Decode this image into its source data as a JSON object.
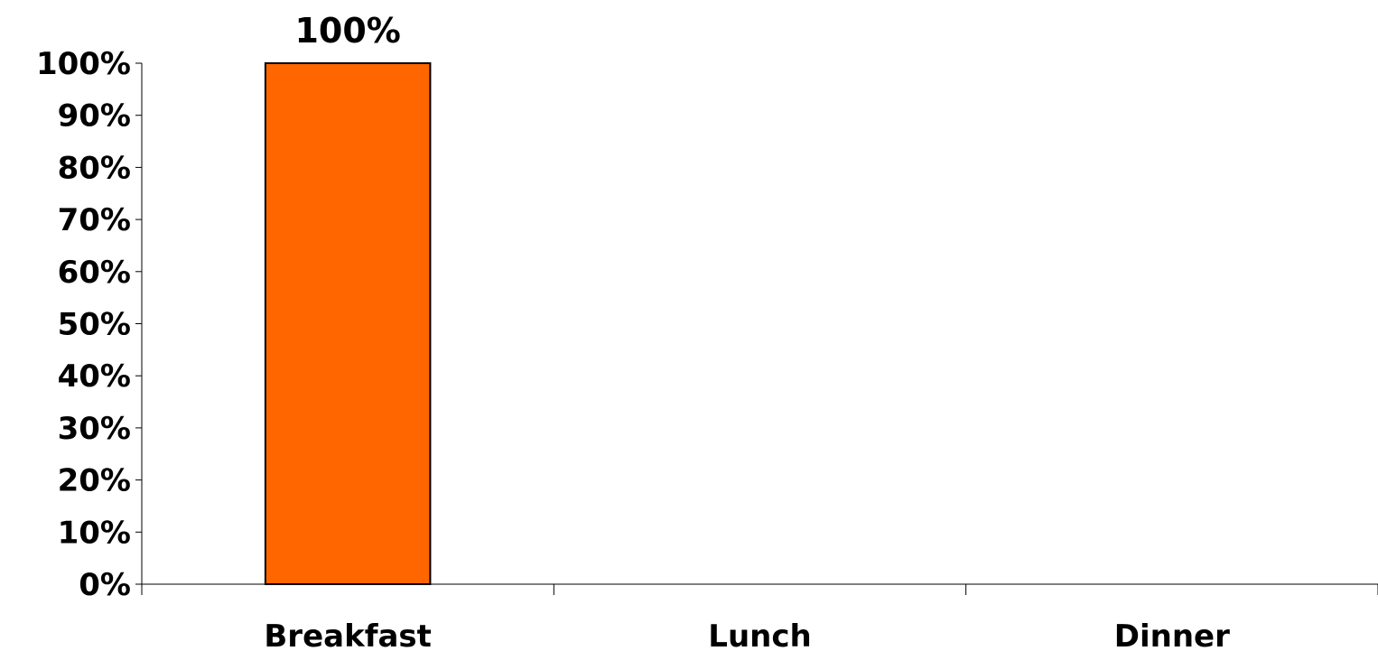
{
  "chart_data": {
    "type": "bar",
    "categories": [
      "Breakfast",
      "Lunch",
      "Dinner"
    ],
    "values": [
      100,
      0,
      0
    ],
    "data_labels": [
      "100%",
      "",
      ""
    ],
    "y_ticks": [
      "0%",
      "10%",
      "20%",
      "30%",
      "40%",
      "50%",
      "60%",
      "70%",
      "80%",
      "90%",
      "100%"
    ],
    "ylim": [
      0,
      100
    ],
    "bar_color": "#FF6600",
    "bar_border_color": "#000000",
    "grid": false,
    "legend": "none"
  }
}
